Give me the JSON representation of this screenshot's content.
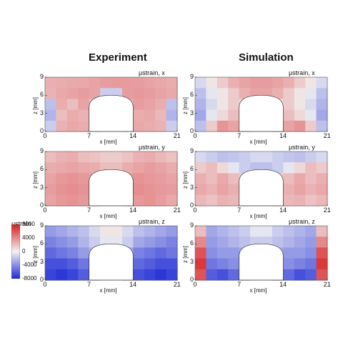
{
  "column_titles": [
    "Experiment",
    "Simulation"
  ],
  "colorbar": {
    "title": "μstrain",
    "ticks": [
      "8000",
      "4000",
      "0",
      "-4000",
      "-8000"
    ],
    "range": [
      -8000,
      8000
    ],
    "colors": {
      "low": "#1f2bd6",
      "mid": "#f2f2f2",
      "high": "#d71e22"
    }
  },
  "chart_data": [
    {
      "type": "heatmap",
      "column": "Experiment",
      "component": "x",
      "label": "μstrain, x",
      "xlabel": "x [mm]",
      "ylabel": "z [mm]",
      "xticks": [
        "0",
        "7",
        "14",
        "21"
      ],
      "yticks": [
        "9",
        "6",
        "3",
        "0"
      ],
      "xlim": [
        0,
        21
      ],
      "ylim": [
        0,
        9
      ],
      "x_tick_values": [
        0,
        7,
        14,
        21
      ],
      "y_tick_values": [
        9,
        6,
        3,
        0
      ],
      "hole": {
        "x_left": 7,
        "x_right": 14,
        "height": 6
      },
      "values": [
        [
          2500,
          2600,
          2700,
          2800,
          3000,
          3200,
          3300,
          3300,
          3200,
          3000,
          2800,
          2600
        ],
        [
          2400,
          2800,
          3000,
          3200,
          3000,
          -1500,
          -1500,
          3200,
          3400,
          3200,
          3000,
          2800
        ],
        [
          -2000,
          2600,
          2000,
          3000,
          2000,
          null,
          null,
          2500,
          3200,
          3000,
          2600,
          -2000
        ],
        [
          -2500,
          2000,
          2600,
          2400,
          2200,
          null,
          null,
          2400,
          2600,
          2800,
          2200,
          -2500
        ],
        [
          -1500,
          2400,
          2800,
          2600,
          2500,
          null,
          null,
          2600,
          2800,
          2600,
          2400,
          -1500
        ]
      ]
    },
    {
      "type": "heatmap",
      "column": "Simulation",
      "component": "x",
      "label": "μstrain, x",
      "xlabel": "x [mm]",
      "ylabel": "z [mm]",
      "xticks": [
        "0",
        "7",
        "14",
        "21"
      ],
      "yticks": [
        "9",
        "6",
        "3",
        "0"
      ],
      "xlim": [
        0,
        21
      ],
      "ylim": [
        0,
        9
      ],
      "x_tick_values": [
        0,
        7,
        14,
        21
      ],
      "y_tick_values": [
        9,
        6,
        3,
        0
      ],
      "hole": {
        "x_left": 7,
        "x_right": 14,
        "height": 6
      },
      "values": [
        [
          -1000,
          500,
          1500,
          2500,
          3000,
          3200,
          3200,
          3000,
          2500,
          1500,
          500,
          -1000
        ],
        [
          -2000,
          -500,
          500,
          1500,
          2500,
          3000,
          3000,
          2500,
          1500,
          500,
          -500,
          -2000
        ],
        [
          -2500,
          -1000,
          500,
          1500,
          1000,
          null,
          null,
          1000,
          1500,
          500,
          -1000,
          -2500
        ],
        [
          -3000,
          -500,
          1000,
          2000,
          1500,
          null,
          null,
          1500,
          2000,
          1000,
          -500,
          -3000
        ],
        [
          -2000,
          1500,
          3500,
          3000,
          2500,
          null,
          null,
          2500,
          3000,
          3500,
          1500,
          -2000
        ]
      ]
    },
    {
      "type": "heatmap",
      "column": "Experiment",
      "component": "y",
      "label": "μstrain, y",
      "xlabel": "x [mm]",
      "ylabel": "z [mm]",
      "xticks": [
        "0",
        "7",
        "14",
        "21"
      ],
      "yticks": [
        "9",
        "6",
        "3",
        "0"
      ],
      "xlim": [
        0,
        21
      ],
      "ylim": [
        0,
        9
      ],
      "x_tick_values": [
        0,
        7,
        14,
        21
      ],
      "y_tick_values": [
        9,
        6,
        3,
        0
      ],
      "hole": {
        "x_left": 7,
        "x_right": 14,
        "height": 6
      },
      "values": [
        [
          2000,
          2400,
          2600,
          2000,
          1800,
          1500,
          1500,
          1800,
          2400,
          2600,
          2200,
          1800
        ],
        [
          2600,
          2800,
          3000,
          2800,
          2600,
          2000,
          2000,
          2600,
          3000,
          3200,
          3000,
          2600
        ],
        [
          3000,
          3400,
          3600,
          3400,
          3200,
          null,
          null,
          3200,
          3600,
          3400,
          3200,
          3000
        ],
        [
          3200,
          3600,
          3800,
          3600,
          3400,
          null,
          null,
          3400,
          3800,
          3600,
          3400,
          3200
        ],
        [
          3000,
          3400,
          3600,
          3400,
          3000,
          null,
          null,
          3000,
          3400,
          3600,
          3200,
          2800
        ]
      ]
    },
    {
      "type": "heatmap",
      "column": "Simulation",
      "component": "y",
      "label": "μstrain, y",
      "xlabel": "x [mm]",
      "ylabel": "z [mm]",
      "xticks": [
        "0",
        "7",
        "14",
        "21"
      ],
      "yticks": [
        "9",
        "6",
        "3",
        "0"
      ],
      "xlim": [
        0,
        21
      ],
      "ylim": [
        0,
        9
      ],
      "x_tick_values": [
        0,
        7,
        14,
        21
      ],
      "y_tick_values": [
        9,
        6,
        3,
        0
      ],
      "hole": {
        "x_left": 7,
        "x_right": 14,
        "height": 6
      },
      "values": [
        [
          -1000,
          -1500,
          -2000,
          -1800,
          -1500,
          -1000,
          -1000,
          -1500,
          -1800,
          -2000,
          -1500,
          -1000
        ],
        [
          1500,
          2000,
          1000,
          -500,
          -1500,
          -2000,
          -2000,
          -1500,
          -500,
          1000,
          2000,
          1500
        ],
        [
          2500,
          2000,
          2800,
          2000,
          1500,
          null,
          null,
          1500,
          2000,
          2800,
          2000,
          2500
        ],
        [
          2800,
          2400,
          3000,
          2500,
          2000,
          null,
          null,
          2000,
          2500,
          3000,
          2400,
          2800
        ],
        [
          2200,
          1800,
          2400,
          2200,
          1800,
          null,
          null,
          1800,
          2200,
          2400,
          1800,
          2200
        ]
      ]
    },
    {
      "type": "heatmap",
      "column": "Experiment",
      "component": "z",
      "label": "μstrain, z",
      "xlabel": "x [mm]",
      "ylabel": "z [mm]",
      "xticks": [
        "0",
        "7",
        "14",
        "21"
      ],
      "yticks": [
        "9",
        "6",
        "3",
        "0"
      ],
      "xlim": [
        0,
        21
      ],
      "ylim": [
        0,
        9
      ],
      "x_tick_values": [
        0,
        7,
        14,
        21
      ],
      "y_tick_values": [
        9,
        6,
        3,
        0
      ],
      "hole": {
        "x_left": 7,
        "x_right": 14,
        "height": 6
      },
      "values": [
        [
          -3500,
          -3000,
          -2500,
          -2000,
          -1000,
          500,
          500,
          -1000,
          -2000,
          -2500,
          -3000,
          -3500
        ],
        [
          -4500,
          -4000,
          -3500,
          -2500,
          -1500,
          -500,
          -500,
          -1500,
          -3000,
          -3500,
          -4000,
          -4500
        ],
        [
          -5500,
          -5000,
          -4500,
          -3500,
          -2500,
          null,
          null,
          -3000,
          -4500,
          -5000,
          -5500,
          -5000
        ],
        [
          -6500,
          -6500,
          -6000,
          -5000,
          -3500,
          null,
          null,
          -4000,
          -5500,
          -6000,
          -6500,
          -6500
        ],
        [
          -7000,
          -7500,
          -7000,
          -6000,
          -4500,
          null,
          null,
          -4500,
          -6500,
          -7000,
          -7500,
          -7000
        ]
      ]
    },
    {
      "type": "heatmap",
      "column": "Simulation",
      "component": "z",
      "label": "μstrain, z",
      "xlabel": "x [mm]",
      "ylabel": "z [mm]",
      "xticks": [
        "0",
        "7",
        "14",
        "21"
      ],
      "yticks": [
        "9",
        "6",
        "3",
        "0"
      ],
      "xlim": [
        0,
        21
      ],
      "ylim": [
        0,
        9
      ],
      "x_tick_values": [
        0,
        7,
        14,
        21
      ],
      "y_tick_values": [
        9,
        6,
        3,
        0
      ],
      "hole": {
        "x_left": 7,
        "x_right": 14,
        "height": 6
      },
      "values": [
        [
          2000,
          -3000,
          -2500,
          -2000,
          -1500,
          -500,
          -500,
          -1500,
          -2000,
          -2500,
          -3000,
          2000
        ],
        [
          4000,
          -3500,
          -3000,
          -2500,
          -2000,
          -1500,
          -1500,
          -2000,
          -2500,
          -3000,
          -3500,
          4000
        ],
        [
          6000,
          -4000,
          -3500,
          -3500,
          -3000,
          null,
          null,
          -3000,
          -3500,
          -3500,
          -4000,
          6000
        ],
        [
          7000,
          -5000,
          -4500,
          -4000,
          -3500,
          null,
          null,
          -3500,
          -4000,
          -4500,
          -5000,
          7000
        ],
        [
          6000,
          -6000,
          -6500,
          -5500,
          -4500,
          null,
          null,
          -4500,
          -5500,
          -6500,
          -6000,
          6000
        ]
      ]
    }
  ]
}
